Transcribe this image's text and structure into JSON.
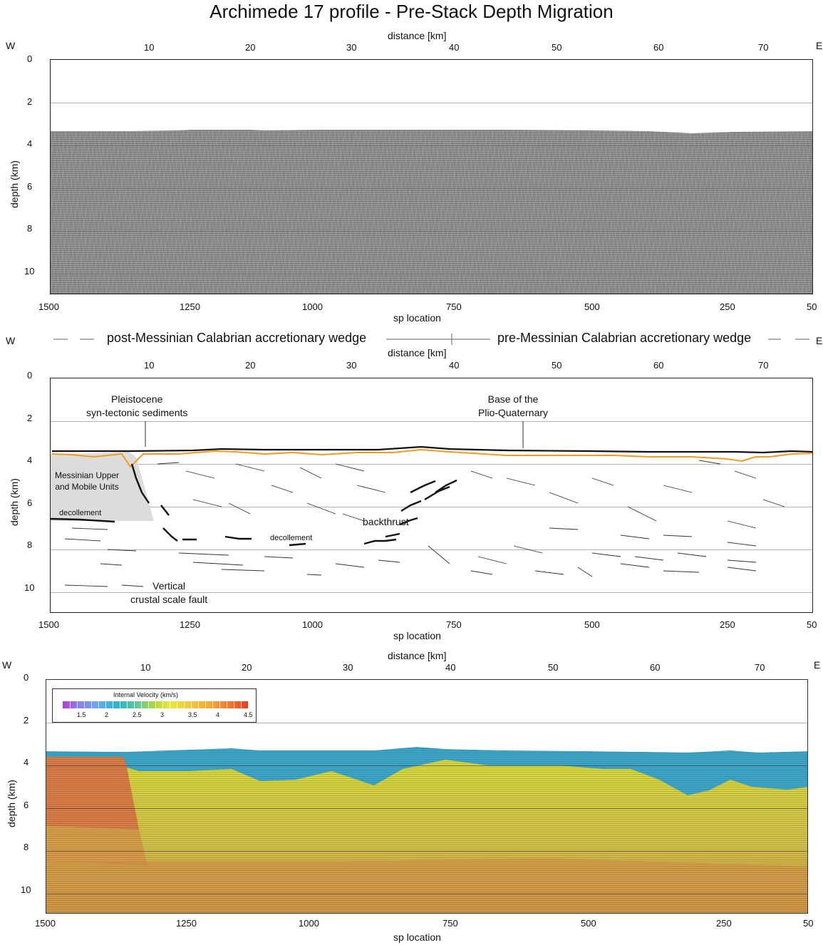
{
  "title": "Archimede 17 profile - Pre-Stack Depth Migration",
  "axes": {
    "distance_label": "distance [km]",
    "sp_label": "sp location",
    "depth_label": "depth (km)",
    "distance_ticks": [
      "10",
      "20",
      "30",
      "40",
      "50",
      "60",
      "70"
    ],
    "sp_ticks": [
      "1500",
      "1250",
      "1000",
      "750",
      "500",
      "250",
      "50"
    ],
    "depth_ticks": [
      "0",
      "2",
      "4",
      "6",
      "8",
      "10"
    ],
    "west": "W",
    "east": "E"
  },
  "wedges": {
    "post": "post-Messinian Calabrian accretionary wedge",
    "pre": "pre-Messinian Calabrian accretionary wedge"
  },
  "annotations": {
    "pleistocene": "Pleistocene\nsyn-tectonic sediments",
    "base": "Base of the\nPlio-Quaternary",
    "messinian": "Messinian Upper\nand Mobile Units",
    "decollement_left": "decollement",
    "decollement_mid": "decollement",
    "backthrust": "backthrust",
    "vertical_fault": "Vertical\ncrustal scale fault"
  },
  "legend": {
    "title": "Internal Velocity (km/s)",
    "ticks": [
      "1.5",
      "2",
      "2.5",
      "3",
      "3.5",
      "4",
      "4.5"
    ]
  },
  "colors": {
    "seafloor": "#111111",
    "plio_base": "#f39a1e",
    "messinian_fill": "#dcdcdc"
  }
}
